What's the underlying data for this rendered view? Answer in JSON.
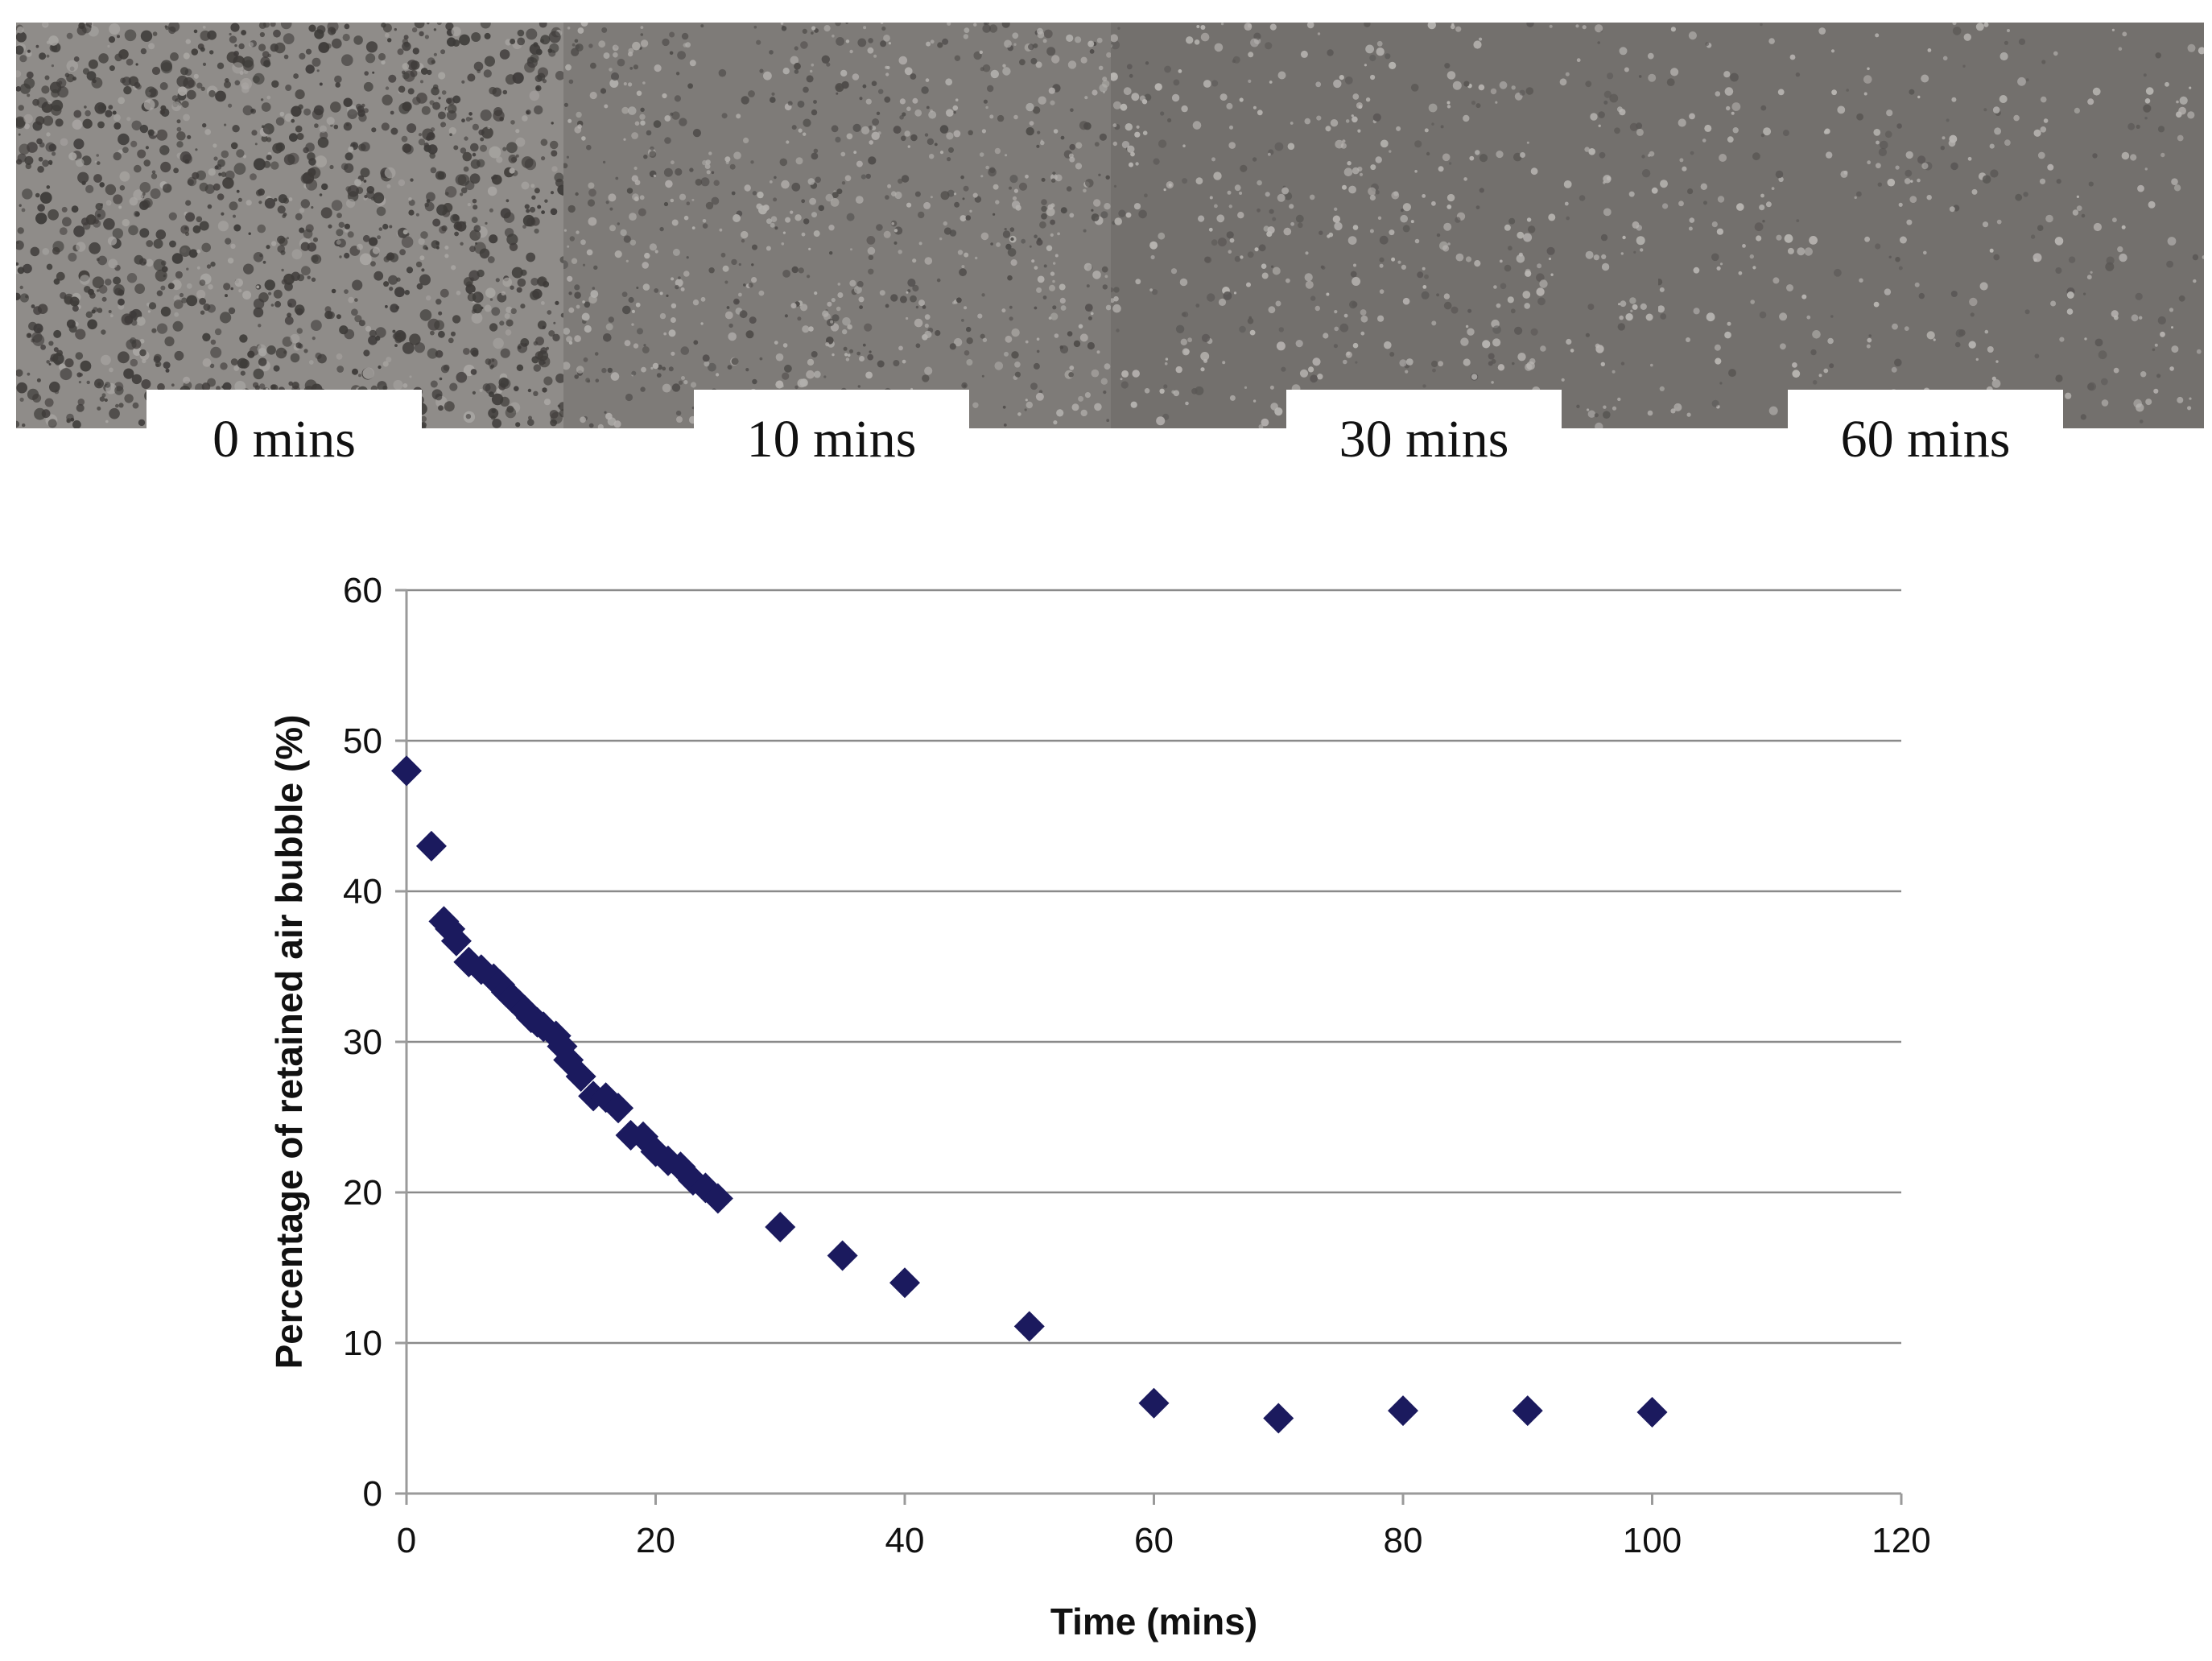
{
  "colors": {
    "marker": "#1b1a5e",
    "gridline": "#8a8a8a",
    "axis": "#9a9a9a",
    "photo_light": "#8e8b88",
    "photo_dark": "#3e3b39"
  },
  "photos": [
    {
      "label": "0 mins",
      "blob_density": 0.55,
      "blob_tone": "dark"
    },
    {
      "label": "10 mins",
      "blob_density": 0.35,
      "blob_tone": "mixed"
    },
    {
      "label": "30 mins",
      "blob_density": 0.22,
      "blob_tone": "light"
    },
    {
      "label": "60 mins",
      "blob_density": 0.14,
      "blob_tone": "light"
    }
  ],
  "chart_data": {
    "type": "scatter",
    "title": "",
    "xlabel": "Time (mins)",
    "ylabel": "Percentage of retained air bubble (%)",
    "xlim": [
      0,
      120
    ],
    "ylim": [
      0,
      60
    ],
    "xticks": [
      0,
      20,
      40,
      60,
      80,
      100,
      120
    ],
    "yticks": [
      0,
      10,
      20,
      30,
      40,
      50,
      60
    ],
    "grid": "horizontal",
    "marker": "diamond",
    "series": [
      {
        "name": "Retained air bubble",
        "x": [
          0,
          2,
          3,
          3.5,
          4,
          5,
          6,
          7,
          7.5,
          8,
          8.5,
          9,
          9.5,
          10,
          10.5,
          11,
          12,
          12.5,
          13,
          14,
          15,
          16,
          17,
          18,
          19,
          20,
          21,
          22,
          23,
          24,
          25,
          30,
          35,
          40,
          50,
          60,
          70,
          80,
          90,
          100
        ],
        "y": [
          48,
          43,
          38,
          37.5,
          36.7,
          35.3,
          34.8,
          34.2,
          33.8,
          33.3,
          32.9,
          32.5,
          32.1,
          31.6,
          31.3,
          31.0,
          30.4,
          29.7,
          28.8,
          27.7,
          26.4,
          26.3,
          25.6,
          23.8,
          23.7,
          22.7,
          22.1,
          21.7,
          20.8,
          20.3,
          19.6,
          17.7,
          15.8,
          14.0,
          11.1,
          6.0,
          5.0,
          5.5,
          5.5,
          5.4
        ]
      }
    ]
  }
}
